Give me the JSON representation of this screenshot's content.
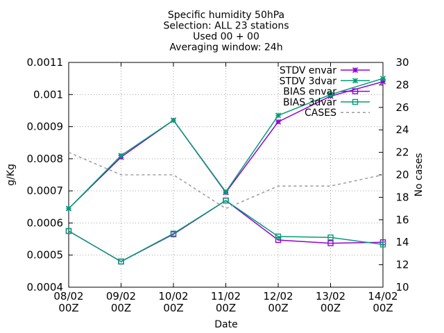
{
  "chart_data": {
    "type": "line",
    "title_lines": [
      "Specific humidity 50hPa",
      "Selection: ALL      23 stations",
      "Used 00 + 00",
      "Averaging window: 24h"
    ],
    "xlabel": "Date",
    "ylabel": "g/Kg",
    "y2label": "No cases",
    "categories": [
      [
        "08/02",
        "00Z"
      ],
      [
        "09/02",
        "00Z"
      ],
      [
        "10/02",
        "00Z"
      ],
      [
        "11/02",
        "00Z"
      ],
      [
        "12/02",
        "00Z"
      ],
      [
        "13/02",
        "00Z"
      ],
      [
        "14/02",
        "00Z"
      ]
    ],
    "ylim": [
      0.0004,
      0.0011
    ],
    "y_ticks": [
      "0.0004",
      "0.0005",
      "0.0006",
      "0.0007",
      "0.0008",
      "0.0009",
      "0.001",
      "0.0011"
    ],
    "y2lim": [
      10,
      30
    ],
    "y2_ticks": [
      "10",
      "12",
      "14",
      "16",
      "18",
      "20",
      "22",
      "24",
      "26",
      "28",
      "30"
    ],
    "grid": true,
    "legend_position": "top-right",
    "series": [
      {
        "name": "STDV envar",
        "axis": "y",
        "marker": "star",
        "color": "#9400d3",
        "values": [
          0.000645,
          0.000805,
          0.00092,
          0.000695,
          0.000915,
          0.000995,
          0.00104
        ]
      },
      {
        "name": "STDV 3dvar",
        "axis": "y",
        "marker": "star",
        "color": "#009e73",
        "values": [
          0.000645,
          0.00081,
          0.00092,
          0.000697,
          0.000935,
          0.001,
          0.00105
        ]
      },
      {
        "name": "BIAS envar",
        "axis": "y",
        "marker": "square",
        "color": "#9400d3",
        "values": [
          0.000575,
          0.00048,
          0.000565,
          0.00067,
          0.000547,
          0.000537,
          0.00054
        ]
      },
      {
        "name": "BIAS 3dvar",
        "axis": "y",
        "marker": "square",
        "color": "#009e73",
        "values": [
          0.000575,
          0.00048,
          0.000567,
          0.00067,
          0.000558,
          0.000555,
          0.000533
        ]
      },
      {
        "name": "CASES",
        "axis": "y2",
        "marker": "none",
        "dash": true,
        "color": "#a0a0a0",
        "values": [
          22,
          20,
          20,
          17,
          19,
          19,
          20
        ]
      }
    ]
  }
}
